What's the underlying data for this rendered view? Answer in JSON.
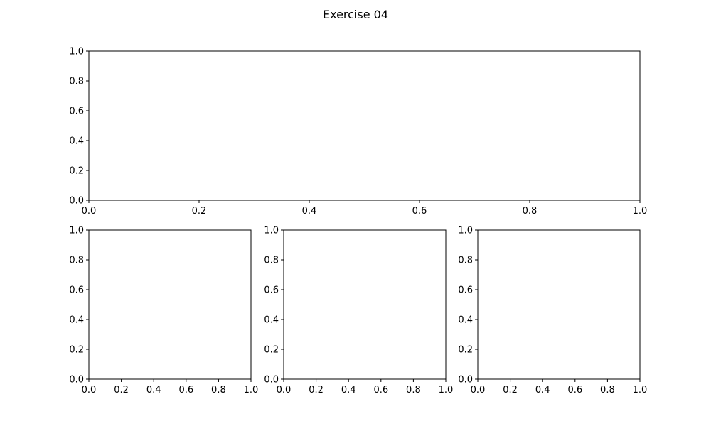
{
  "figure": {
    "title": "Exercise 04",
    "background": "#ffffff",
    "axes_color": "#000000"
  },
  "chart_data": [
    {
      "type": "line",
      "title": "",
      "xlabel": "",
      "ylabel": "",
      "xlim": [
        0.0,
        1.0
      ],
      "ylim": [
        0.0,
        1.0
      ],
      "xticks": [
        "0.0",
        "0.2",
        "0.4",
        "0.6",
        "0.8",
        "1.0"
      ],
      "yticks": [
        "0.0",
        "0.2",
        "0.4",
        "0.6",
        "0.8",
        "1.0"
      ],
      "grid": false,
      "series": []
    },
    {
      "type": "line",
      "title": "",
      "xlabel": "",
      "ylabel": "",
      "xlim": [
        0.0,
        1.0
      ],
      "ylim": [
        0.0,
        1.0
      ],
      "xticks": [
        "0.0",
        "0.2",
        "0.4",
        "0.6",
        "0.8",
        "1.0"
      ],
      "yticks": [
        "0.0",
        "0.2",
        "0.4",
        "0.6",
        "0.8",
        "1.0"
      ],
      "grid": false,
      "series": []
    },
    {
      "type": "line",
      "title": "",
      "xlabel": "",
      "ylabel": "",
      "xlim": [
        0.0,
        1.0
      ],
      "ylim": [
        0.0,
        1.0
      ],
      "xticks": [
        "0.0",
        "0.2",
        "0.4",
        "0.6",
        "0.8",
        "1.0"
      ],
      "yticks": [
        "0.0",
        "0.2",
        "0.4",
        "0.6",
        "0.8",
        "1.0"
      ],
      "grid": false,
      "series": []
    },
    {
      "type": "line",
      "title": "",
      "xlabel": "",
      "ylabel": "",
      "xlim": [
        0.0,
        1.0
      ],
      "ylim": [
        0.0,
        1.0
      ],
      "xticks": [
        "0.0",
        "0.2",
        "0.4",
        "0.6",
        "0.8",
        "1.0"
      ],
      "yticks": [
        "0.0",
        "0.2",
        "0.4",
        "0.6",
        "0.8",
        "1.0"
      ],
      "grid": false,
      "series": []
    }
  ]
}
